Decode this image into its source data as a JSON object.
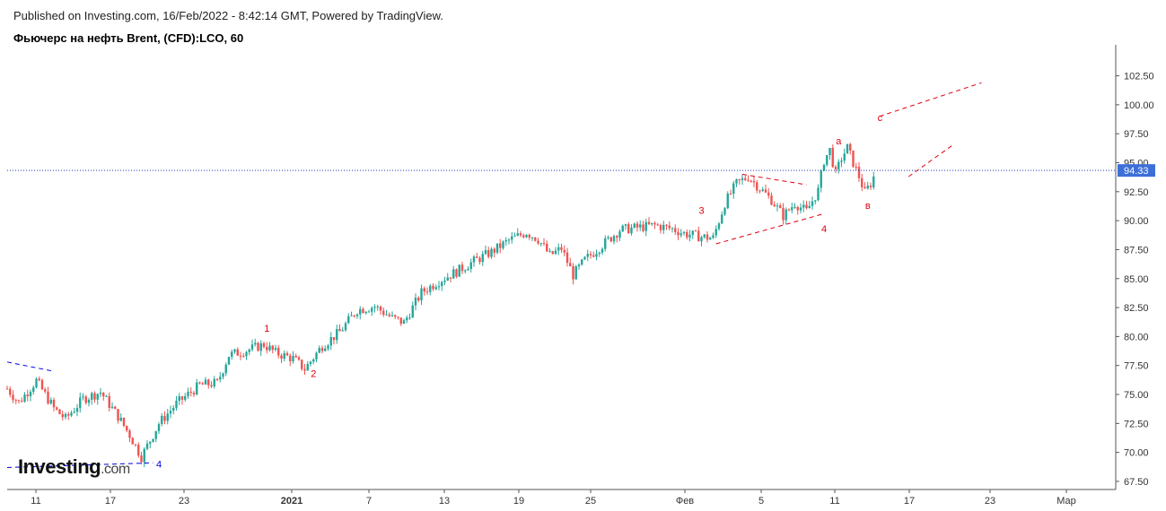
{
  "header": {
    "published": "Published on Investing.com, 16/Feb/2022 - 8:42:14 GMT, Powered by TradingView.",
    "instrument": "Фьючерс на нефть Brent, (CFD):LCO, 60"
  },
  "logo": {
    "main": "Investing",
    "suffix": ".com"
  },
  "colors": {
    "up": "#26a69a",
    "down": "#ef5350",
    "price_line": "#1f3fbf",
    "price_tag_bg": "#3d6fd8",
    "wave_red": "#e0000f",
    "wave_blue": "#0000dd"
  },
  "chart_data": {
    "type": "candlestick",
    "ylim": [
      66.8,
      104.4
    ],
    "y_ticks": [
      67.5,
      70.0,
      72.5,
      75.0,
      77.5,
      80.0,
      82.5,
      85.0,
      87.5,
      90.0,
      92.5,
      95.0,
      97.5,
      100.0,
      102.5
    ],
    "y_tick_labels": [
      "67.50",
      "70.00",
      "72.50",
      "75.00",
      "77.50",
      "80.00",
      "82.50",
      "85.00",
      "87.50",
      "90.00",
      "92.50",
      "95.00",
      "97.50",
      "100.00",
      "102.50"
    ],
    "x_ticks": [
      "11",
      "17",
      "23",
      "2021",
      "7",
      "13",
      "19",
      "25",
      "Фев",
      "5",
      "11",
      "17",
      "23",
      "Мар"
    ],
    "current_price": 94.33,
    "current_price_label": "94.33",
    "price_path": [
      {
        "t": 0,
        "p": 75.5
      },
      {
        "t": 2,
        "p": 74.3
      },
      {
        "t": 5,
        "p": 76.2
      },
      {
        "t": 8,
        "p": 73.8
      },
      {
        "t": 10,
        "p": 72.9
      },
      {
        "t": 13,
        "p": 74.6
      },
      {
        "t": 16,
        "p": 75.2
      },
      {
        "t": 19,
        "p": 73.1
      },
      {
        "t": 21,
        "p": 71.5
      },
      {
        "t": 23,
        "p": 69.6
      },
      {
        "t": 26,
        "p": 72.5
      },
      {
        "t": 29,
        "p": 74.2
      },
      {
        "t": 33,
        "p": 75.8
      },
      {
        "t": 36,
        "p": 76.0
      },
      {
        "t": 38,
        "p": 78.4
      },
      {
        "t": 41,
        "p": 78.8
      },
      {
        "t": 44,
        "p": 79.3
      },
      {
        "t": 46,
        "p": 78.6
      },
      {
        "t": 49,
        "p": 78.1
      },
      {
        "t": 51,
        "p": 77.2
      },
      {
        "t": 54,
        "p": 79.2
      },
      {
        "t": 57,
        "p": 80.4
      },
      {
        "t": 60,
        "p": 82.3
      },
      {
        "t": 63,
        "p": 82.6
      },
      {
        "t": 66,
        "p": 81.6
      },
      {
        "t": 68,
        "p": 81.2
      },
      {
        "t": 71,
        "p": 83.8
      },
      {
        "t": 74,
        "p": 84.8
      },
      {
        "t": 77,
        "p": 85.6
      },
      {
        "t": 80,
        "p": 86.5
      },
      {
        "t": 83,
        "p": 87.3
      },
      {
        "t": 86,
        "p": 88.3
      },
      {
        "t": 89,
        "p": 89.0
      },
      {
        "t": 91,
        "p": 88.4
      },
      {
        "t": 93,
        "p": 87.0
      },
      {
        "t": 95,
        "p": 87.6
      },
      {
        "t": 97,
        "p": 85.3
      },
      {
        "t": 99,
        "p": 86.6
      },
      {
        "t": 102,
        "p": 87.9
      },
      {
        "t": 105,
        "p": 89.2
      },
      {
        "t": 108,
        "p": 89.4
      },
      {
        "t": 111,
        "p": 89.6
      },
      {
        "t": 114,
        "p": 89.3
      },
      {
        "t": 116,
        "p": 88.9
      },
      {
        "t": 119,
        "p": 88.6
      },
      {
        "t": 121,
        "p": 88.5
      },
      {
        "t": 123,
        "p": 91.5
      },
      {
        "t": 125,
        "p": 93.2
      },
      {
        "t": 127,
        "p": 93.8
      },
      {
        "t": 129,
        "p": 92.8
      },
      {
        "t": 131,
        "p": 91.8
      },
      {
        "t": 133,
        "p": 90.4
      },
      {
        "t": 135,
        "p": 91.5
      },
      {
        "t": 137,
        "p": 90.8
      },
      {
        "t": 139,
        "p": 92.6
      },
      {
        "t": 140,
        "p": 95.2
      },
      {
        "t": 141,
        "p": 96.1
      },
      {
        "t": 142,
        "p": 94.0
      },
      {
        "t": 143,
        "p": 95.4
      },
      {
        "t": 144,
        "p": 96.3
      },
      {
        "t": 145,
        "p": 95.0
      },
      {
        "t": 146,
        "p": 93.8
      },
      {
        "t": 147,
        "p": 92.4
      },
      {
        "t": 148,
        "p": 93.2
      },
      {
        "t": 149,
        "p": 94.33
      }
    ],
    "wave_labels": [
      {
        "text": "1",
        "t": 44.5,
        "p": 80.4,
        "color": "red"
      },
      {
        "text": "2",
        "t": 52.5,
        "p": 76.5,
        "color": "red"
      },
      {
        "text": "3",
        "t": 119.0,
        "p": 90.6,
        "color": "red"
      },
      {
        "text": "4",
        "t": 140.0,
        "p": 89.0,
        "color": "red"
      },
      {
        "text": "а",
        "t": 142.5,
        "p": 96.6,
        "color": "red"
      },
      {
        "text": "в",
        "t": 147.5,
        "p": 91.0,
        "color": "red"
      },
      {
        "text": "с",
        "t": 149.6,
        "p": 98.6,
        "color": "red"
      },
      {
        "text": "4",
        "t": 26.0,
        "p": 68.7,
        "color": "blue"
      }
    ],
    "trend_lines": [
      {
        "color": "blue",
        "from": {
          "t": 0,
          "p": 77.8
        },
        "to": {
          "t": 8,
          "p": 77.0
        }
      },
      {
        "color": "blue",
        "from": {
          "t": 0,
          "p": 68.7
        },
        "to": {
          "t": 25,
          "p": 69.1
        }
      },
      {
        "color": "red",
        "from": {
          "t": 121.5,
          "p": 88.0
        },
        "to": {
          "t": 140,
          "p": 90.6
        }
      },
      {
        "color": "red",
        "from": {
          "t": 126,
          "p": 94.0
        },
        "to": {
          "t": 137,
          "p": 93.1
        }
      },
      {
        "color": "red",
        "from": {
          "t": 149.5,
          "p": 99.0
        },
        "to": {
          "t": 167,
          "p": 101.9
        }
      },
      {
        "color": "red",
        "from": {
          "t": 154.5,
          "p": 93.8
        },
        "to": {
          "t": 162,
          "p": 96.5
        }
      }
    ]
  }
}
